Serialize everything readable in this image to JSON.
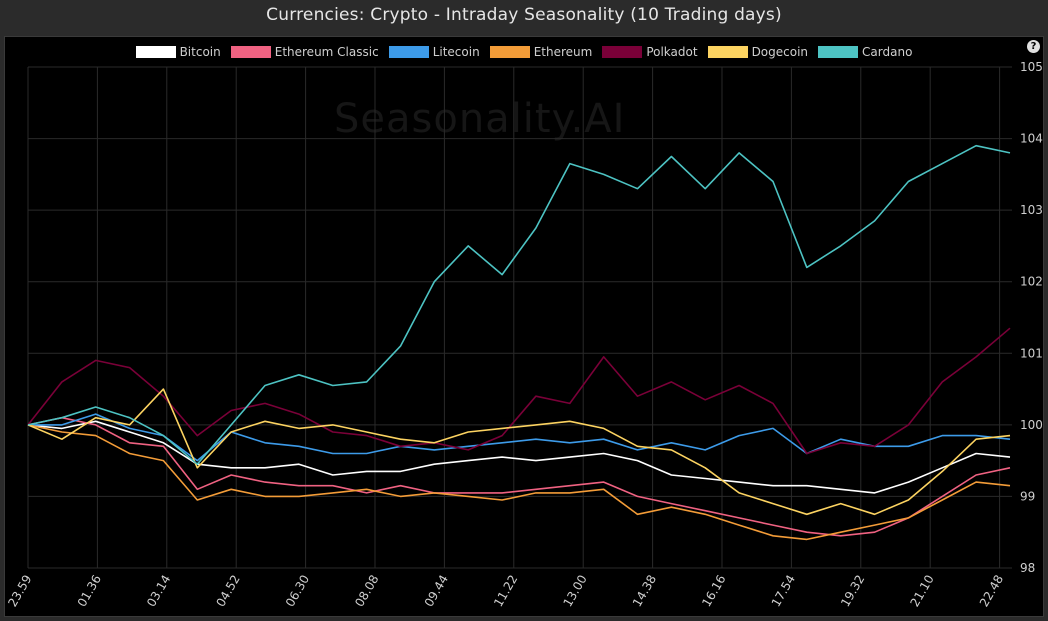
{
  "title": "Currencies: Crypto - Intraday Seasonality (10 Trading days)",
  "help_label": "?",
  "watermark": "Seasonality.AI",
  "chart_data": {
    "type": "line",
    "title": "Currencies: Crypto - Intraday Seasonality (10 Trading days)",
    "xlabel": "",
    "ylabel": "",
    "x_ticks": [
      "23.59",
      "01.36",
      "03.14",
      "04.52",
      "06.30",
      "08.08",
      "09.44",
      "11.22",
      "13.00",
      "14.38",
      "16.16",
      "17.54",
      "19.32",
      "21.10",
      "22.48"
    ],
    "y_ticks": [
      "98",
      "99",
      "100",
      "101",
      "102",
      "103",
      "104",
      "105"
    ],
    "ylim": [
      98,
      105
    ],
    "grid": true,
    "legend_position": "top",
    "x_points": [
      "23.59",
      "00.48",
      "01.36",
      "02.25",
      "03.14",
      "04.03",
      "04.52",
      "05.41",
      "06.30",
      "07.19",
      "08.08",
      "08.56",
      "09.44",
      "10.33",
      "11.22",
      "12.11",
      "13.00",
      "13.49",
      "14.38",
      "15.27",
      "16.16",
      "17.05",
      "17.54",
      "18.43",
      "19.32",
      "20.21",
      "21.10",
      "21.59",
      "22.48",
      "23.35"
    ],
    "series": [
      {
        "name": "Bitcoin",
        "color": "#ffffff",
        "values": [
          100.0,
          99.95,
          100.05,
          99.9,
          99.75,
          99.45,
          99.4,
          99.4,
          99.45,
          99.3,
          99.35,
          99.35,
          99.45,
          99.5,
          99.55,
          99.5,
          99.55,
          99.6,
          99.5,
          99.3,
          99.25,
          99.2,
          99.15,
          99.15,
          99.1,
          99.05,
          99.2,
          99.4,
          99.6,
          99.55
        ]
      },
      {
        "name": "Ethereum Classic",
        "color": "#f06282",
        "values": [
          100.0,
          100.1,
          100.0,
          99.75,
          99.7,
          99.1,
          99.3,
          99.2,
          99.15,
          99.15,
          99.05,
          99.15,
          99.05,
          99.05,
          99.05,
          99.1,
          99.15,
          99.2,
          99.0,
          98.9,
          98.8,
          98.7,
          98.6,
          98.5,
          98.45,
          98.5,
          98.7,
          99.0,
          99.3,
          99.4
        ]
      },
      {
        "name": "Litecoin",
        "color": "#3d9be9",
        "values": [
          100.0,
          100.0,
          100.15,
          99.95,
          99.85,
          99.5,
          99.9,
          99.75,
          99.7,
          99.6,
          99.6,
          99.7,
          99.65,
          99.7,
          99.75,
          99.8,
          99.75,
          99.8,
          99.65,
          99.75,
          99.65,
          99.85,
          99.95,
          99.6,
          99.8,
          99.7,
          99.7,
          99.85,
          99.85,
          99.8
        ]
      },
      {
        "name": "Ethereum",
        "color": "#f39c38",
        "values": [
          100.0,
          99.9,
          99.85,
          99.6,
          99.5,
          98.95,
          99.1,
          99.0,
          99.0,
          99.05,
          99.1,
          99.0,
          99.05,
          99.0,
          98.95,
          99.05,
          99.05,
          99.1,
          98.75,
          98.85,
          98.75,
          98.6,
          98.45,
          98.4,
          98.5,
          98.6,
          98.7,
          98.95,
          99.2,
          99.15
        ]
      },
      {
        "name": "Polkadot",
        "color": "#7a0038",
        "values": [
          100.0,
          100.6,
          100.9,
          100.8,
          100.4,
          99.85,
          100.2,
          100.3,
          100.15,
          99.9,
          99.85,
          99.7,
          99.75,
          99.65,
          99.85,
          100.4,
          100.3,
          100.95,
          100.4,
          100.6,
          100.35,
          100.55,
          100.3,
          99.6,
          99.75,
          99.7,
          100.0,
          100.6,
          100.95,
          101.35
        ]
      },
      {
        "name": "Dogecoin",
        "color": "#fcd361",
        "values": [
          100.0,
          99.8,
          100.1,
          100.0,
          100.5,
          99.4,
          99.9,
          100.05,
          99.95,
          100.0,
          99.9,
          99.8,
          99.75,
          99.9,
          99.95,
          100.0,
          100.05,
          99.95,
          99.7,
          99.65,
          99.4,
          99.05,
          98.9,
          98.75,
          98.9,
          98.75,
          98.95,
          99.35,
          99.8,
          99.85
        ]
      },
      {
        "name": "Cardano",
        "color": "#4dc3c3",
        "values": [
          100.0,
          100.1,
          100.25,
          100.1,
          99.85,
          99.45,
          100.0,
          100.55,
          100.7,
          100.55,
          100.6,
          101.1,
          102.0,
          102.5,
          102.1,
          102.75,
          103.65,
          103.5,
          103.3,
          103.75,
          103.3,
          103.8,
          103.4,
          102.2,
          102.5,
          102.85,
          103.4,
          103.65,
          103.9,
          103.8
        ]
      }
    ]
  }
}
